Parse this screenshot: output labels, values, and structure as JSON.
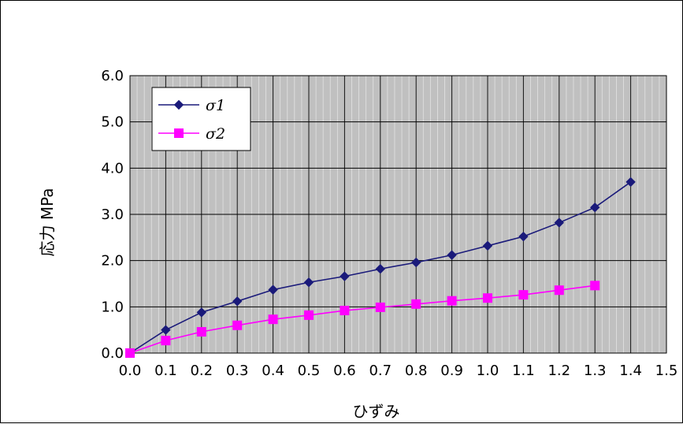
{
  "chart_data": {
    "type": "line",
    "title": "",
    "xlabel": "ひずみ",
    "ylabel": "応力 MPa",
    "xlim": [
      0.0,
      1.5
    ],
    "ylim": [
      0.0,
      6.0
    ],
    "x_ticks": [
      "0.0",
      "0.1",
      "0.2",
      "0.3",
      "0.4",
      "0.5",
      "0.6",
      "0.7",
      "0.8",
      "0.9",
      "1.0",
      "1.1",
      "1.2",
      "1.3",
      "1.4",
      "1.5"
    ],
    "y_ticks": [
      "0.0",
      "1.0",
      "2.0",
      "3.0",
      "4.0",
      "5.0",
      "6.0"
    ],
    "grid": true,
    "legend_position": "top-left",
    "plot_background": "#c0c0c0",
    "series": [
      {
        "name": "σ1",
        "color": "#1a1a7a",
        "marker": "diamond",
        "x": [
          0.0,
          0.1,
          0.2,
          0.3,
          0.4,
          0.5,
          0.6,
          0.7,
          0.8,
          0.9,
          1.0,
          1.1,
          1.2,
          1.3,
          1.4
        ],
        "values": [
          0.0,
          0.5,
          0.88,
          1.12,
          1.37,
          1.53,
          1.66,
          1.82,
          1.96,
          2.12,
          2.32,
          2.52,
          2.82,
          3.15,
          3.7
        ]
      },
      {
        "name": "σ2",
        "color": "#ff00ff",
        "marker": "square",
        "x": [
          0.0,
          0.1,
          0.2,
          0.3,
          0.4,
          0.5,
          0.6,
          0.7,
          0.8,
          0.9,
          1.0,
          1.1,
          1.2,
          1.3
        ],
        "values": [
          0.0,
          0.27,
          0.46,
          0.6,
          0.73,
          0.82,
          0.92,
          0.99,
          1.06,
          1.13,
          1.19,
          1.26,
          1.36,
          1.46
        ]
      }
    ]
  }
}
